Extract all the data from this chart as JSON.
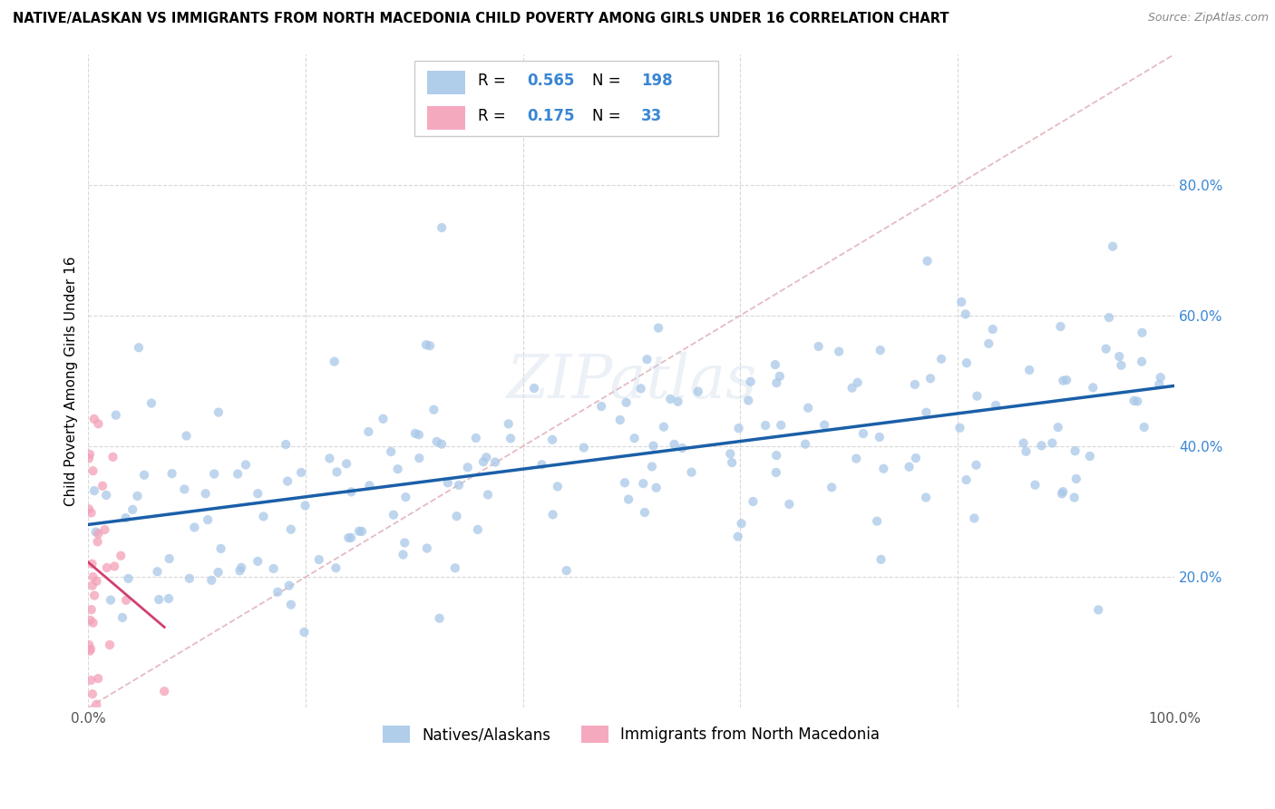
{
  "title": "NATIVE/ALASKAN VS IMMIGRANTS FROM NORTH MACEDONIA CHILD POVERTY AMONG GIRLS UNDER 16 CORRELATION CHART",
  "source": "Source: ZipAtlas.com",
  "ylabel": "Child Poverty Among Girls Under 16",
  "R_blue": 0.565,
  "N_blue": 198,
  "R_pink": 0.175,
  "N_pink": 33,
  "blue_color": "#a8c8e8",
  "pink_color": "#f4a0b8",
  "trendline_blue": "#1a5fa8",
  "trendline_pink": "#d04070",
  "diagonal_color": "#e0b0b8",
  "watermark": "ZIPatlas",
  "legend_blue": "Natives/Alaskans",
  "legend_pink": "Immigrants from North Macedonia",
  "label_color_blue": "#3a86d4",
  "xlim": [
    0,
    1.0
  ],
  "ylim": [
    0,
    1.0
  ],
  "xtick_vals": [
    0.0,
    0.2,
    0.4,
    0.6,
    0.8,
    1.0
  ],
  "ytick_vals": [
    0.0,
    0.2,
    0.4,
    0.6,
    0.8
  ],
  "xticklabels": [
    "0.0%",
    "",
    "",
    "",
    "",
    "100.0%"
  ],
  "yticklabels": [
    "",
    "20.0%",
    "40.0%",
    "60.0%",
    "80.0%"
  ]
}
